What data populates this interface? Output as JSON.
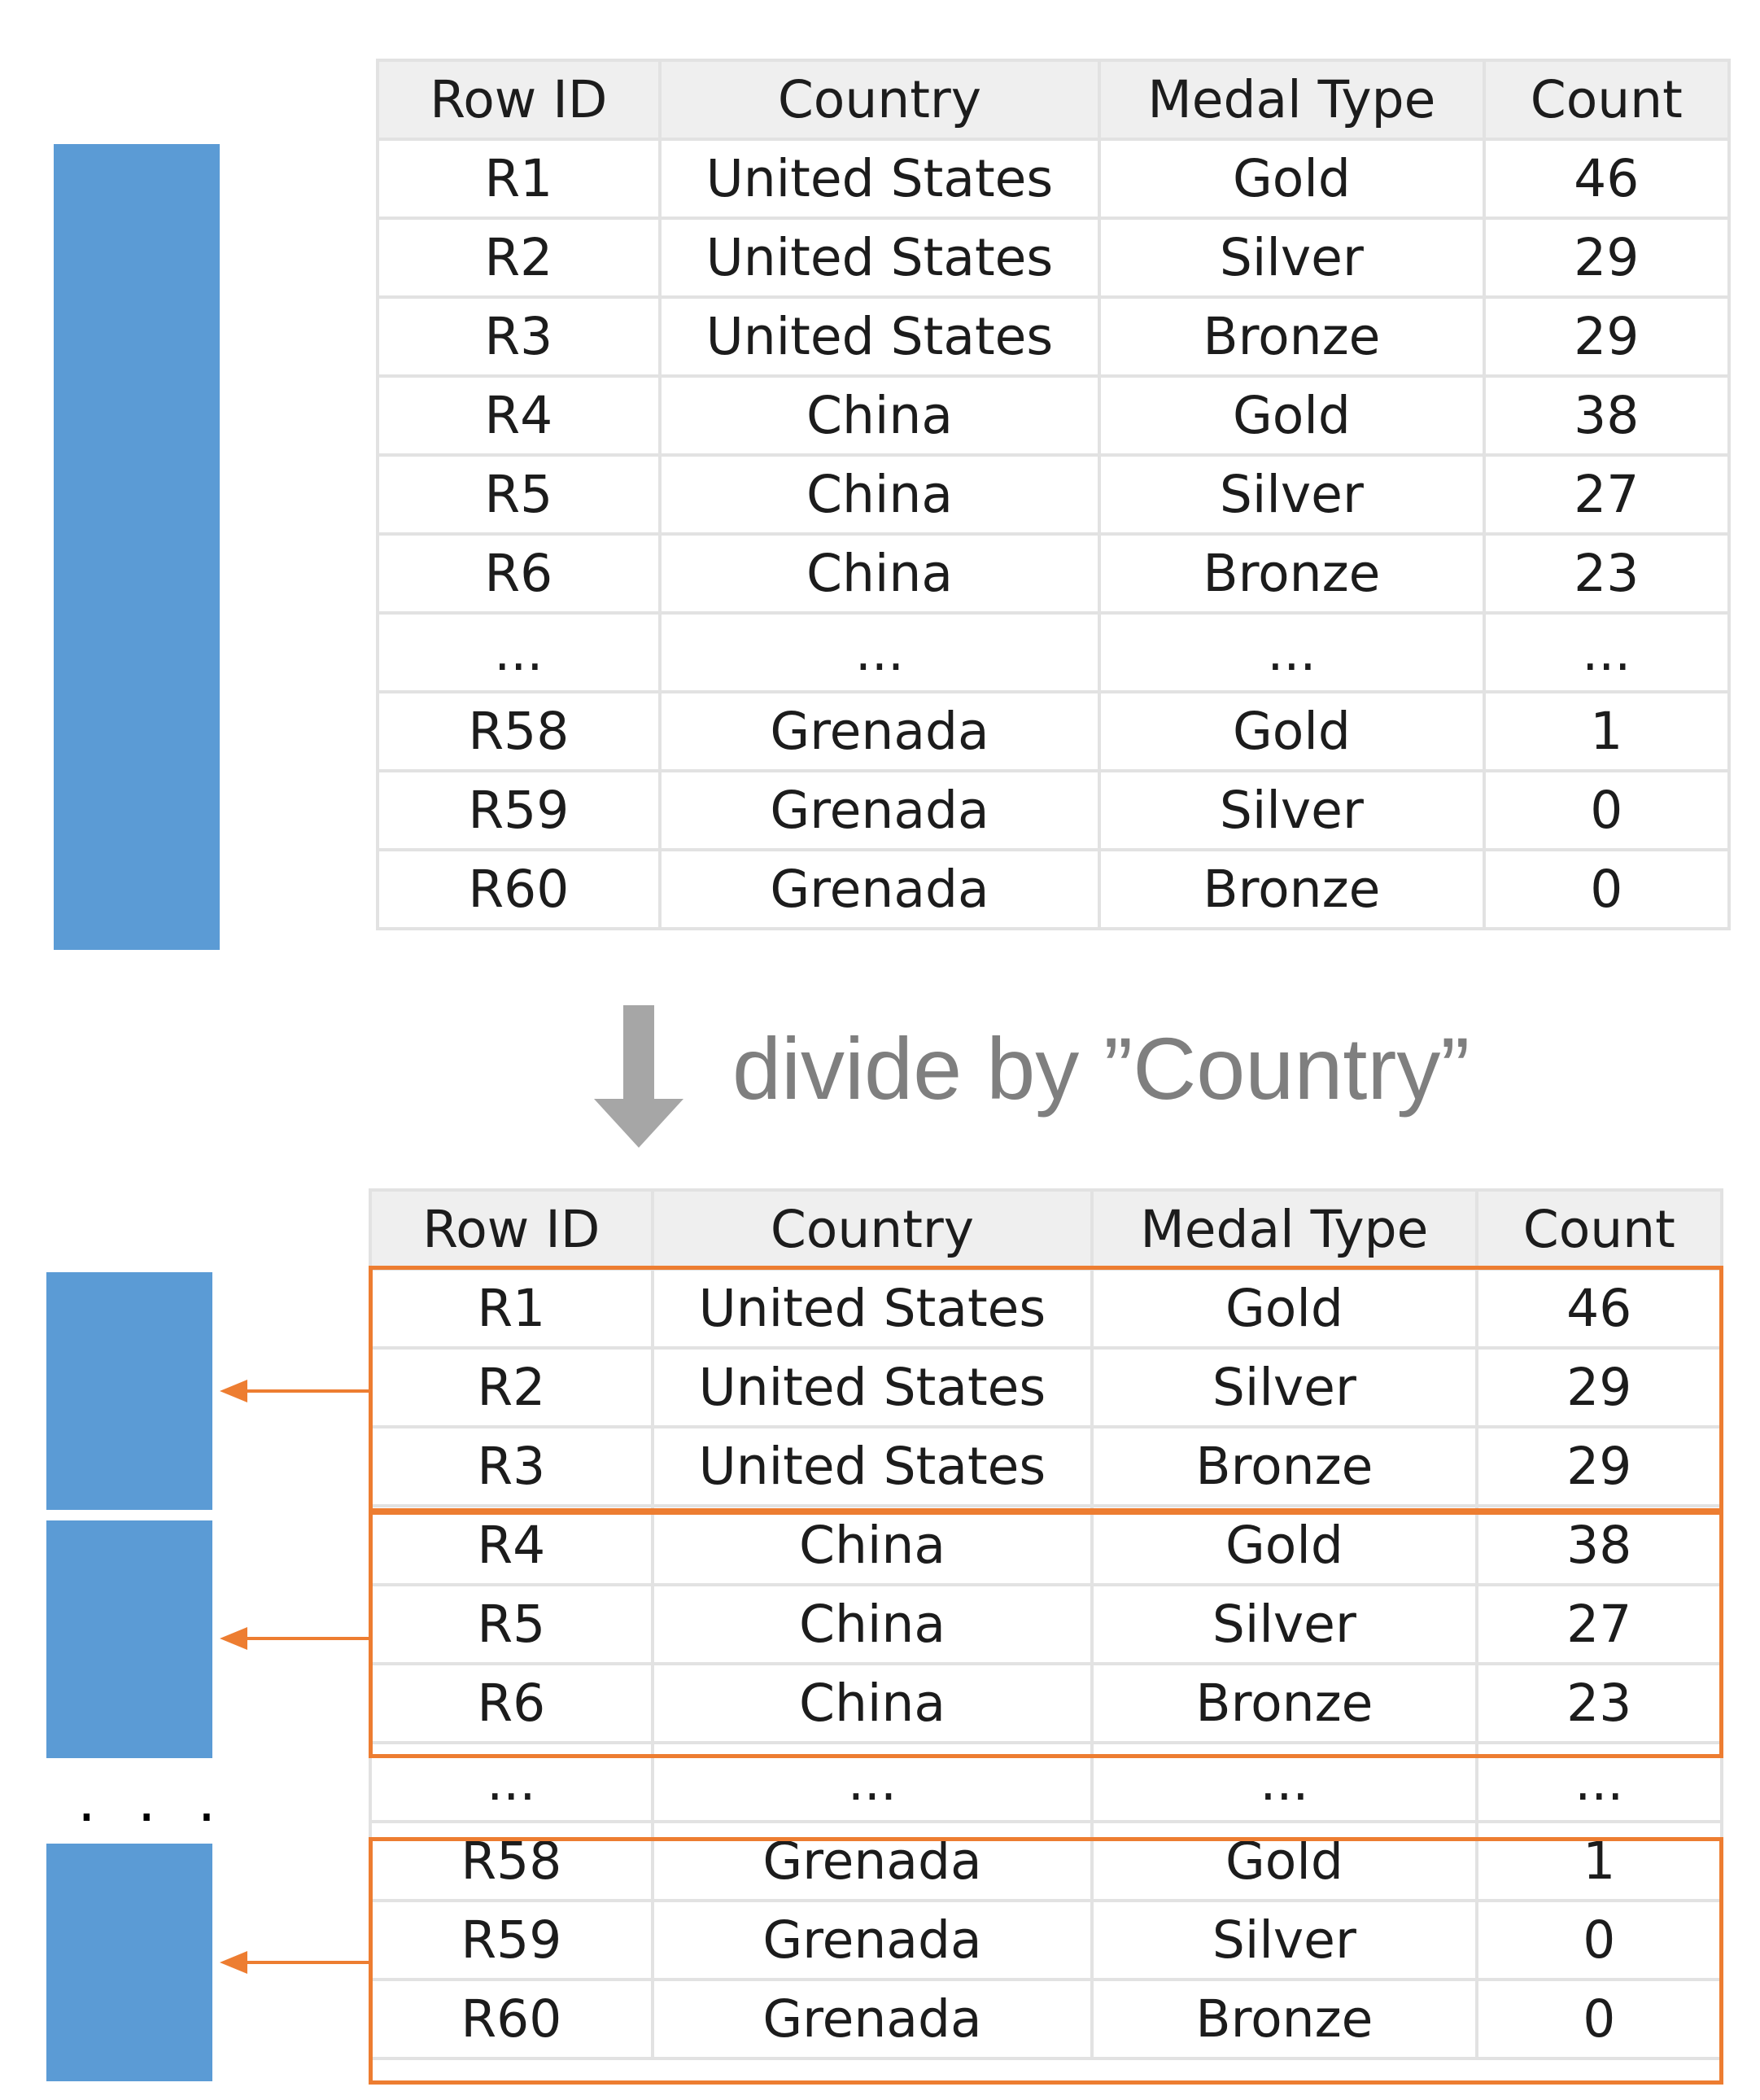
{
  "columns": [
    "Row ID",
    "Country",
    "Medal Type",
    "Count"
  ],
  "rows": [
    [
      "R1",
      "United States",
      "Gold",
      "46"
    ],
    [
      "R2",
      "United States",
      "Silver",
      "29"
    ],
    [
      "R3",
      "United States",
      "Bronze",
      "29"
    ],
    [
      "R4",
      "China",
      "Gold",
      "38"
    ],
    [
      "R5",
      "China",
      "Silver",
      "27"
    ],
    [
      "R6",
      "China",
      "Bronze",
      "23"
    ],
    [
      "...",
      "...",
      "...",
      "..."
    ],
    [
      "R58",
      "Grenada",
      "Gold",
      "1"
    ],
    [
      "R59",
      "Grenada",
      "Silver",
      "0"
    ],
    [
      "R60",
      "Grenada",
      "Bronze",
      "0"
    ]
  ],
  "divide_caption": "divide by ”Country”",
  "partition_ellipsis": ". . .",
  "colors": {
    "partition_block": "#5b9bd5",
    "group_outline": "#ed7d31",
    "down_arrow": "#a6a6a6",
    "caption": "#7f7f7f"
  }
}
